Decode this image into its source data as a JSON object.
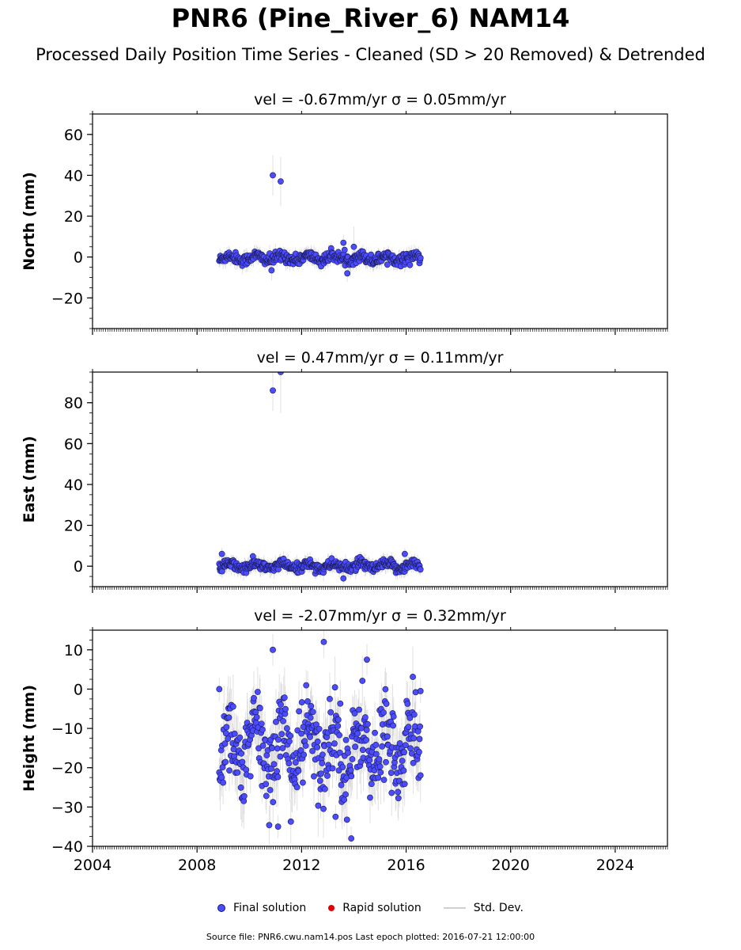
{
  "title": "PNR6 (Pine_River_6) NAM14",
  "subtitle": "Processed Daily Position Time Series - Cleaned (SD > 20 Removed) & Detrended",
  "legend": {
    "final": "Final solution",
    "rapid": "Rapid solution",
    "std": "Std. Dev."
  },
  "footer": "Source file: PNR6.cwu.nam14.pos  Last epoch plotted: 2016-07-21 12:00:00",
  "colors": {
    "final": "#4b4bff",
    "rapid": "#e00000",
    "std": "#c8c8c8"
  },
  "chart_data": [
    {
      "type": "scatter",
      "title": "vel = -0.67mm/yr   σ = 0.05mm/yr",
      "ylabel": "North (mm)",
      "xlim": [
        2004,
        2026
      ],
      "ylim": [
        -35,
        70
      ],
      "yticks": [
        -20,
        0,
        20,
        40,
        60
      ],
      "xticks": [
        2004,
        2008,
        2012,
        2016,
        2020,
        2024
      ],
      "data_range": [
        2008.85,
        2016.55
      ],
      "typical": {
        "center": -0.5,
        "amplitude": 1.2,
        "noise": 1.3,
        "sd": 3.0
      },
      "outliers": [
        {
          "x": 2010.9,
          "y": 40,
          "sd": 10
        },
        {
          "x": 2011.2,
          "y": 37,
          "sd": 12
        },
        {
          "x": 2013.75,
          "y": -8,
          "sd": 4
        },
        {
          "x": 2013.6,
          "y": 7,
          "sd": 4
        },
        {
          "x": 2010.85,
          "y": -6.5,
          "sd": 5
        },
        {
          "x": 2014.0,
          "y": 5,
          "sd": 10
        }
      ]
    },
    {
      "type": "scatter",
      "title": "vel = 0.47mm/yr   σ = 0.11mm/yr",
      "ylabel": "East (mm)",
      "xlim": [
        2004,
        2026
      ],
      "ylim": [
        -10,
        95
      ],
      "yticks": [
        0,
        20,
        40,
        60,
        80
      ],
      "xticks": [
        2004,
        2008,
        2012,
        2016,
        2020,
        2024
      ],
      "data_range": [
        2008.85,
        2016.55
      ],
      "typical": {
        "center": 0,
        "amplitude": 1.2,
        "noise": 1.2,
        "sd": 3.0
      },
      "outliers": [
        {
          "x": 2010.9,
          "y": 86,
          "sd": 10
        },
        {
          "x": 2011.2,
          "y": 95,
          "sd": 20
        },
        {
          "x": 2008.95,
          "y": 6,
          "sd": 3
        },
        {
          "x": 2015.95,
          "y": 6,
          "sd": 3
        },
        {
          "x": 2013.6,
          "y": -6,
          "sd": 3
        }
      ]
    },
    {
      "type": "scatter",
      "title": "vel = -2.07mm/yr   σ = 0.32mm/yr",
      "ylabel": "Height (mm)",
      "xlim": [
        2004,
        2026
      ],
      "ylim": [
        -40,
        15
      ],
      "yticks": [
        -40,
        -30,
        -20,
        -10,
        0,
        10
      ],
      "xticks": [
        2004,
        2008,
        2012,
        2016,
        2020,
        2024
      ],
      "xticklabels": [
        "2004",
        "2008",
        "2012",
        "2016",
        "2020",
        "2024"
      ],
      "data_range": [
        2008.85,
        2016.55
      ],
      "typical": {
        "center": -15,
        "amplitude": 6,
        "noise": 5.5,
        "sd": 6.0
      },
      "outliers": [
        {
          "x": 2010.9,
          "y": 10,
          "sd": 4
        },
        {
          "x": 2012.85,
          "y": 12,
          "sd": 4
        },
        {
          "x": 2014.5,
          "y": 7.5,
          "sd": 4
        },
        {
          "x": 2013.9,
          "y": -38,
          "sd": 3
        },
        {
          "x": 2013.3,
          "y": -32.5,
          "sd": 3
        },
        {
          "x": 2011.1,
          "y": -35,
          "sd": 3
        },
        {
          "x": 2008.85,
          "y": 0,
          "sd": 3
        },
        {
          "x": 2016.55,
          "y": -0.5,
          "sd": 3
        }
      ]
    }
  ]
}
